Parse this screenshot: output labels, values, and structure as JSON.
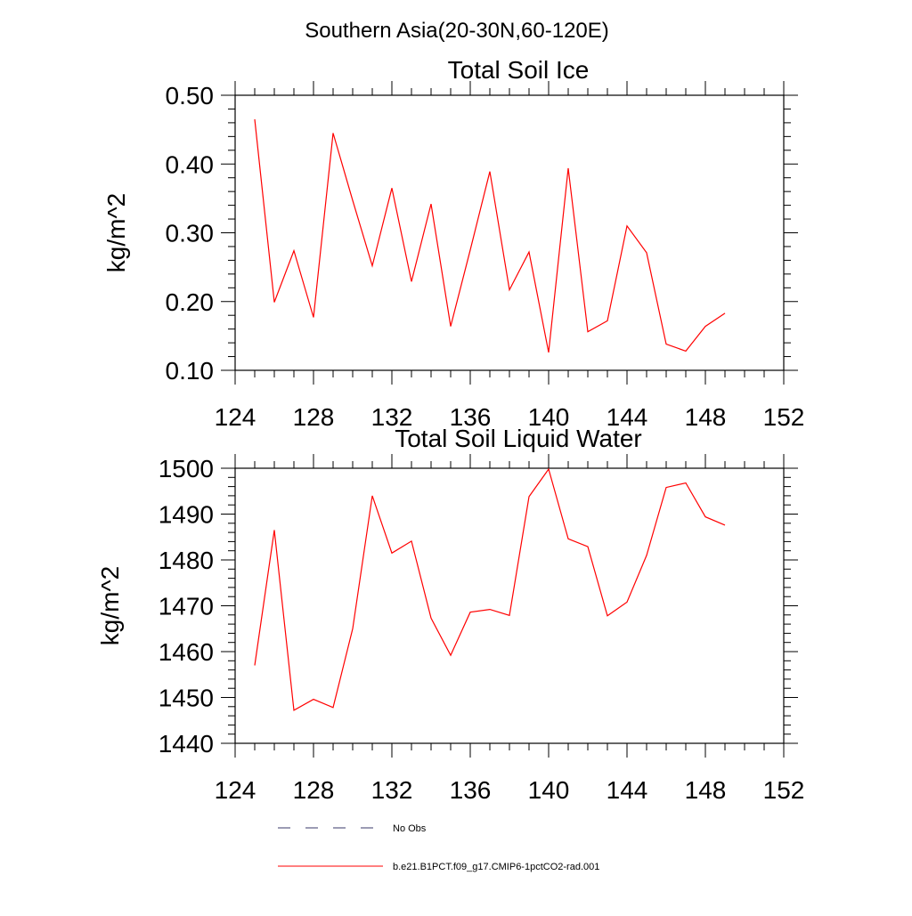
{
  "figure": {
    "main_title": "Southern Asia(20-30N,60-120E)"
  },
  "chart_data": [
    {
      "type": "line",
      "title": "Total Soil Ice",
      "xlabel": "",
      "ylabel": "kg/m^2",
      "xlim": [
        124,
        152
      ],
      "ylim": [
        0.1,
        0.5
      ],
      "x_ticks": [
        124,
        128,
        132,
        136,
        140,
        144,
        148,
        152
      ],
      "y_ticks": [
        0.1,
        0.2,
        0.3,
        0.4,
        0.5
      ],
      "y_tick_labels": [
        "0.10",
        "0.20",
        "0.30",
        "0.40",
        "0.50"
      ],
      "grid": false,
      "x": [
        125,
        126,
        127,
        128,
        129,
        130,
        131,
        132,
        133,
        134,
        135,
        136,
        137,
        138,
        139,
        140,
        141,
        142,
        143,
        144,
        145,
        146,
        147,
        148,
        149
      ],
      "series": [
        {
          "name": "b.e21.B1PCT.f09_g17.CMIP6-1pctCO2-rad.001",
          "color": "#ff0000",
          "values": [
            0.465,
            0.199,
            0.274,
            0.177,
            0.445,
            0.347,
            0.252,
            0.365,
            0.229,
            0.342,
            0.164,
            0.275,
            0.389,
            0.217,
            0.272,
            0.126,
            0.394,
            0.156,
            0.172,
            0.31,
            0.271,
            0.138,
            0.128,
            0.164,
            0.183
          ]
        }
      ]
    },
    {
      "type": "line",
      "title": "Total Soil Liquid Water",
      "xlabel": "",
      "ylabel": "kg/m^2",
      "xlim": [
        124,
        152
      ],
      "ylim": [
        1440,
        1500
      ],
      "x_ticks": [
        124,
        128,
        132,
        136,
        140,
        144,
        148,
        152
      ],
      "y_ticks": [
        1440,
        1450,
        1460,
        1470,
        1480,
        1490,
        1500
      ],
      "y_tick_labels": [
        "1440",
        "1450",
        "1460",
        "1470",
        "1480",
        "1490",
        "1500"
      ],
      "grid": false,
      "x": [
        125,
        126,
        127,
        128,
        129,
        130,
        131,
        132,
        133,
        134,
        135,
        136,
        137,
        138,
        139,
        140,
        141,
        142,
        143,
        144,
        145,
        146,
        147,
        148,
        149
      ],
      "series": [
        {
          "name": "b.e21.B1PCT.f09_g17.CMIP6-1pctCO2-rad.001",
          "color": "#ff0000",
          "values": [
            1457.0,
            1486.5,
            1447.2,
            1449.6,
            1447.8,
            1465.0,
            1494.0,
            1481.5,
            1484.1,
            1467.3,
            1459.2,
            1468.6,
            1469.2,
            1467.9,
            1493.8,
            1499.8,
            1484.6,
            1482.9,
            1467.8,
            1470.8,
            1481.0,
            1495.8,
            1496.8,
            1489.4,
            1487.6
          ]
        }
      ]
    }
  ],
  "legend": {
    "placement": "bottom",
    "items": [
      {
        "label": "No Obs",
        "style": "dashed",
        "color": "#3a3a6a"
      },
      {
        "label": "b.e21.B1PCT.f09_g17.CMIP6-1pctCO2-rad.001",
        "style": "solid",
        "color": "#ff0000"
      }
    ]
  }
}
